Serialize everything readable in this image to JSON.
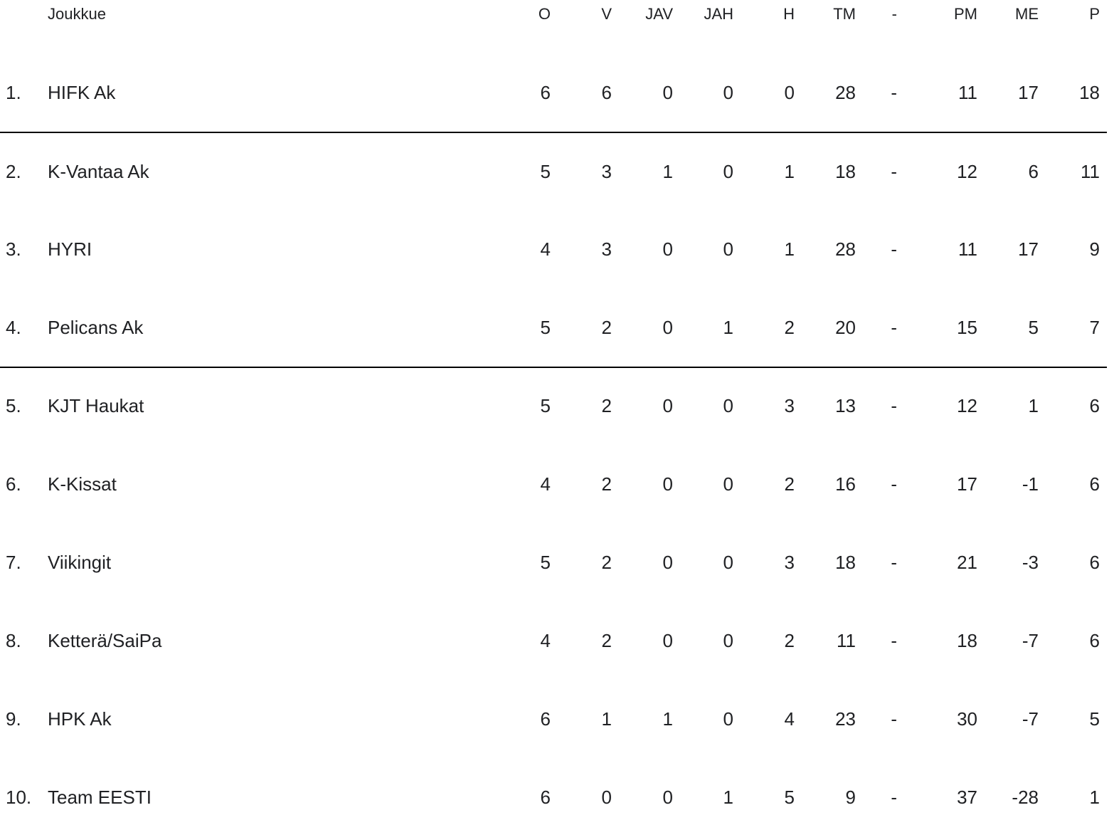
{
  "columns": [
    "O",
    "V",
    "JAV",
    "JAH",
    "H",
    "TM",
    "-",
    "PM",
    "ME",
    "P"
  ],
  "header": {
    "team": "Joukkue"
  },
  "rows": [
    {
      "rank": "1.",
      "team": "HIFK Ak",
      "values": [
        "6",
        "6",
        "0",
        "0",
        "0",
        "28",
        "-",
        "11",
        "17",
        "18"
      ]
    },
    {
      "rank": "2.",
      "team": "K-Vantaa Ak",
      "values": [
        "5",
        "3",
        "1",
        "0",
        "1",
        "18",
        "-",
        "12",
        "6",
        "11"
      ]
    },
    {
      "rank": "3.",
      "team": "HYRI",
      "values": [
        "4",
        "3",
        "0",
        "0",
        "1",
        "28",
        "-",
        "11",
        "17",
        "9"
      ]
    },
    {
      "rank": "4.",
      "team": "Pelicans Ak",
      "values": [
        "5",
        "2",
        "0",
        "1",
        "2",
        "20",
        "-",
        "15",
        "5",
        "7"
      ]
    },
    {
      "rank": "5.",
      "team": "KJT Haukat",
      "values": [
        "5",
        "2",
        "0",
        "0",
        "3",
        "13",
        "-",
        "12",
        "1",
        "6"
      ]
    },
    {
      "rank": "6.",
      "team": "K-Kissat",
      "values": [
        "4",
        "2",
        "0",
        "0",
        "2",
        "16",
        "-",
        "17",
        "-1",
        "6"
      ]
    },
    {
      "rank": "7.",
      "team": "Viikingit",
      "values": [
        "5",
        "2",
        "0",
        "0",
        "3",
        "18",
        "-",
        "21",
        "-3",
        "6"
      ]
    },
    {
      "rank": "8.",
      "team": "Ketterä/SaiPa",
      "values": [
        "4",
        "2",
        "0",
        "0",
        "2",
        "11",
        "-",
        "18",
        "-7",
        "6"
      ]
    },
    {
      "rank": "9.",
      "team": "HPK Ak",
      "values": [
        "6",
        "1",
        "1",
        "0",
        "4",
        "23",
        "-",
        "30",
        "-7",
        "5"
      ]
    },
    {
      "rank": "10.",
      "team": "Team EESTI",
      "values": [
        "6",
        "0",
        "0",
        "1",
        "5",
        "9",
        "-",
        "37",
        "-28",
        "1"
      ]
    }
  ]
}
